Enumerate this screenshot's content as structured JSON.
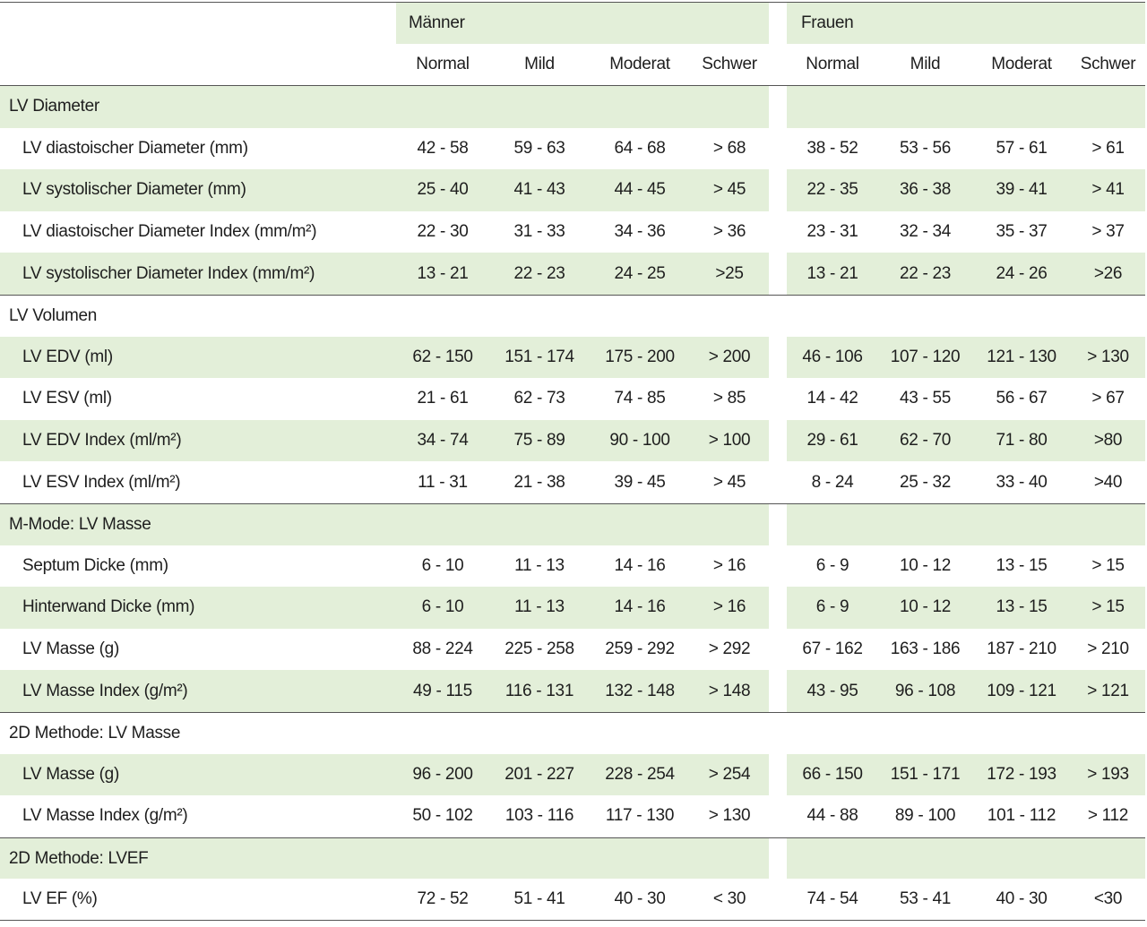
{
  "header": {
    "groups": [
      "Männer",
      "Frauen"
    ],
    "columns": [
      "Normal",
      "Mild",
      "Moderat",
      "Schwer",
      "Normal",
      "Mild",
      "Moderat",
      "Schwer"
    ]
  },
  "sections": [
    {
      "title": "LV Diameter",
      "rows": [
        {
          "label": "LV diastoischer Diameter (mm)",
          "values": [
            "42 - 58",
            "59 - 63",
            "64 - 68",
            "> 68",
            "38 - 52",
            "53 - 56",
            "57 - 61",
            "> 61"
          ]
        },
        {
          "label": "LV systolischer Diameter (mm)",
          "values": [
            "25 - 40",
            "41 - 43",
            "44 - 45",
            "> 45",
            "22 - 35",
            "36 - 38",
            "39 - 41",
            "> 41"
          ]
        },
        {
          "label": "LV diastoischer Diameter Index (mm/m²)",
          "values": [
            "22 - 30",
            "31 - 33",
            "34 - 36",
            "> 36",
            "23 - 31",
            "32 - 34",
            "35 - 37",
            "> 37"
          ]
        },
        {
          "label": "LV systolischer Diameter Index (mm/m²)",
          "values": [
            "13 - 21",
            "22 - 23",
            "24 - 25",
            ">25",
            "13 - 21",
            "22 - 23",
            "24 - 26",
            ">26"
          ]
        }
      ]
    },
    {
      "title": "LV Volumen",
      "rows": [
        {
          "label": "LV EDV (ml)",
          "values": [
            "62 - 150",
            "151 - 174",
            "175 - 200",
            "> 200",
            "46 - 106",
            "107 - 120",
            "121 - 130",
            "> 130"
          ]
        },
        {
          "label": "LV ESV (ml)",
          "values": [
            "21 - 61",
            "62 - 73",
            "74 - 85",
            "> 85",
            "14 - 42",
            "43 - 55",
            "56 - 67",
            "> 67"
          ]
        },
        {
          "label": "LV EDV Index (ml/m²)",
          "values": [
            "34 - 74",
            "75 - 89",
            "90 - 100",
            "> 100",
            "29 - 61",
            "62 - 70",
            "71 - 80",
            ">80"
          ]
        },
        {
          "label": "LV ESV Index (ml/m²)",
          "values": [
            "11 - 31",
            "21 - 38",
            "39 - 45",
            "> 45",
            "8 - 24",
            "25 - 32",
            "33 - 40",
            ">40"
          ]
        }
      ]
    },
    {
      "title": "M-Mode: LV Masse",
      "rows": [
        {
          "label": "Septum Dicke (mm)",
          "values": [
            "6 - 10",
            "11 - 13",
            "14 - 16",
            "> 16",
            "6 - 9",
            "10 - 12",
            "13 - 15",
            "> 15"
          ]
        },
        {
          "label": "Hinterwand Dicke (mm)",
          "values": [
            "6 - 10",
            "11 - 13",
            "14 - 16",
            "> 16",
            "6 - 9",
            "10 - 12",
            "13 - 15",
            "> 15"
          ]
        },
        {
          "label": "LV Masse (g)",
          "values": [
            "88 - 224",
            "225 - 258",
            "259 - 292",
            "> 292",
            "67 - 162",
            "163 - 186",
            "187 - 210",
            "> 210"
          ]
        },
        {
          "label": "LV Masse Index (g/m²)",
          "values": [
            "49 - 115",
            "116 - 131",
            "132 - 148",
            "> 148",
            "43 - 95",
            "96 - 108",
            "109 - 121",
            "> 121"
          ]
        }
      ]
    },
    {
      "title": "2D Methode: LV Masse",
      "rows": [
        {
          "label": "LV Masse (g)",
          "values": [
            "96 - 200",
            "201 - 227",
            "228 - 254",
            "> 254",
            "66 - 150",
            "151 - 171",
            "172 - 193",
            "> 193"
          ]
        },
        {
          "label": "LV Masse Index (g/m²)",
          "values": [
            "50 - 102",
            "103 - 116",
            "117 - 130",
            "> 130",
            "44 - 88",
            "89 - 100",
            "101 - 112",
            "> 112"
          ]
        }
      ]
    },
    {
      "title": "2D Methode: LVEF",
      "rows": [
        {
          "label": "LV EF (%)",
          "values": [
            "72 - 52",
            "51 - 41",
            "40 - 30",
            "< 30",
            "74 - 54",
            "53 - 41",
            "40 - 30",
            "<30"
          ]
        }
      ]
    }
  ]
}
